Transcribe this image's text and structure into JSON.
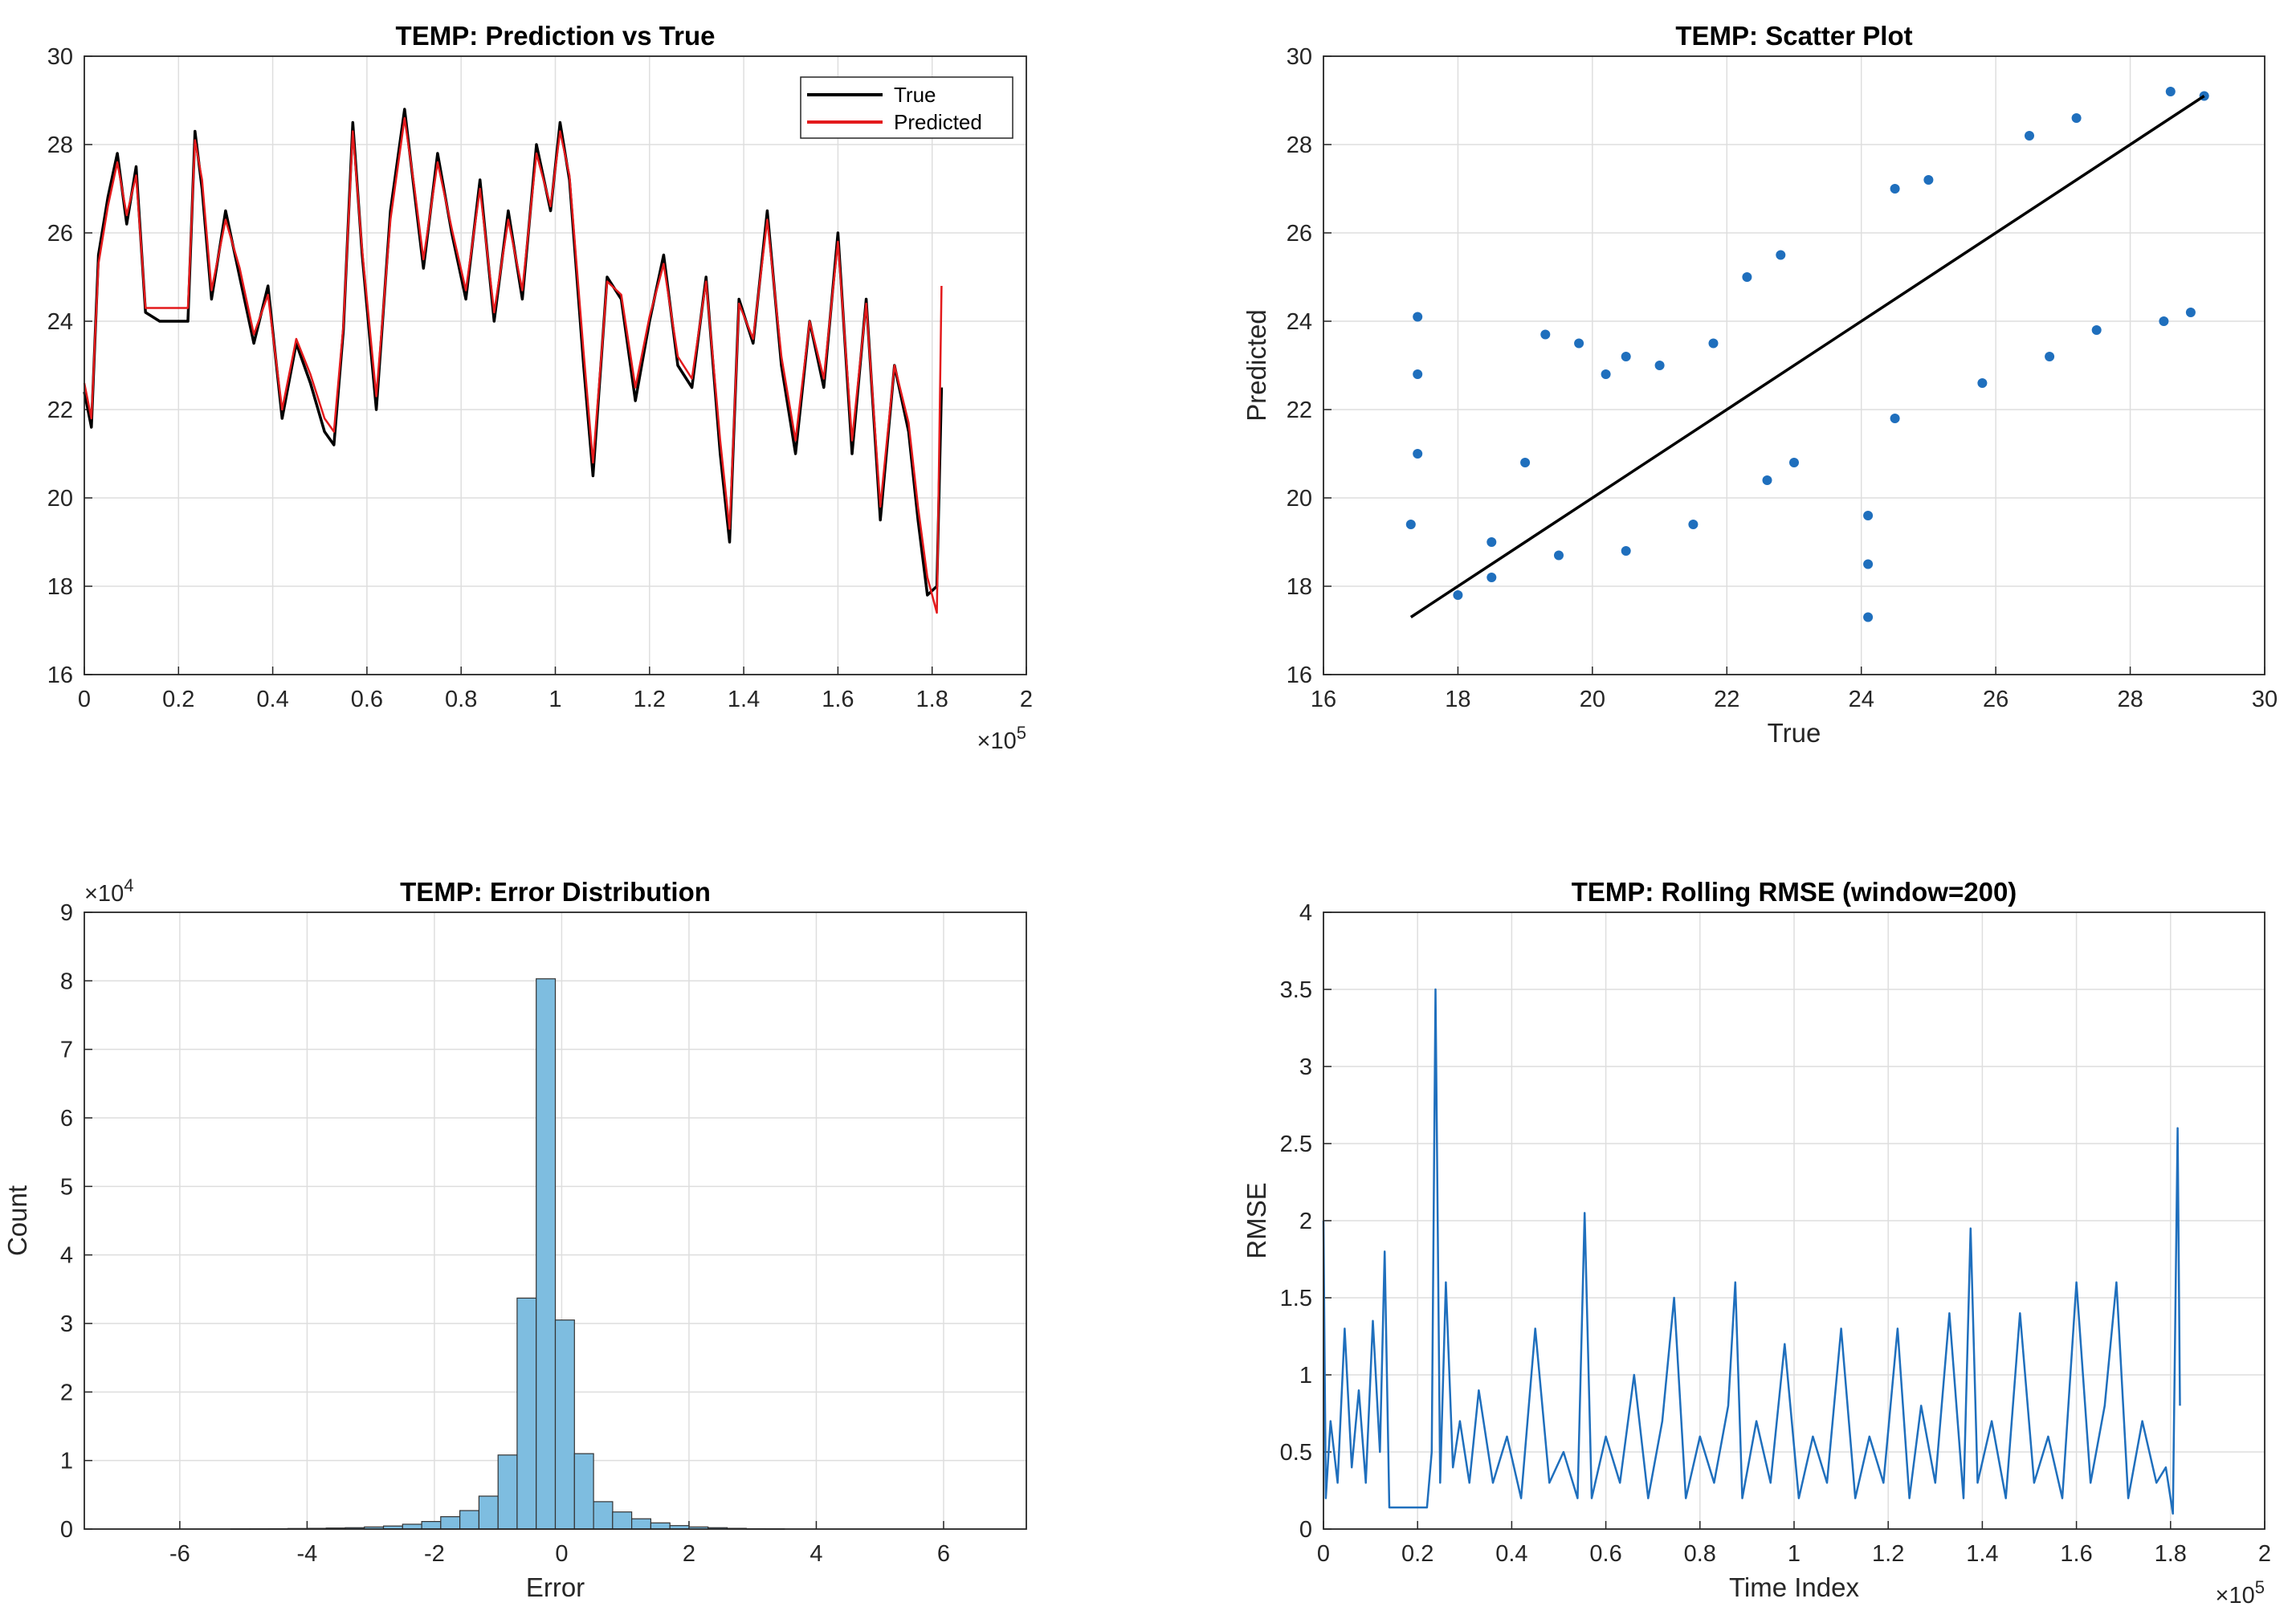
{
  "chart_data": [
    {
      "id": "pred",
      "type": "line",
      "title": "TEMP: Prediction vs True",
      "xlabel": "",
      "ylabel": "",
      "xlim": [
        0,
        200000
      ],
      "ylim": [
        16,
        30
      ],
      "xticks": [
        0,
        20000,
        40000,
        60000,
        80000,
        100000,
        120000,
        140000,
        160000,
        180000,
        200000
      ],
      "xtick_labels": [
        "0",
        "0.2",
        "0.4",
        "0.6",
        "0.8",
        "1",
        "1.2",
        "1.4",
        "1.6",
        "1.8",
        "2"
      ],
      "yticks": [
        16,
        18,
        20,
        22,
        24,
        26,
        28,
        30
      ],
      "ytick_labels": [
        "16",
        "18",
        "20",
        "22",
        "24",
        "26",
        "28",
        "30"
      ],
      "x_exponent_base": "×10",
      "x_exponent_power": "5",
      "grid": true,
      "legend_position": "top-right",
      "x": [
        0,
        1500,
        3000,
        5000,
        7000,
        9000,
        11000,
        13000,
        16000,
        20000,
        22000,
        23500,
        25000,
        27000,
        30000,
        33000,
        36000,
        39000,
        42000,
        45000,
        48000,
        51000,
        53000,
        55000,
        57000,
        59000,
        62000,
        65000,
        68000,
        70000,
        72000,
        75000,
        78000,
        81000,
        84000,
        87000,
        90000,
        93000,
        96000,
        99000,
        101000,
        103000,
        106000,
        108000,
        111000,
        114000,
        117000,
        120000,
        123000,
        126000,
        129000,
        132000,
        135000,
        137000,
        139000,
        142000,
        145000,
        148000,
        151000,
        154000,
        157000,
        160000,
        163000,
        166000,
        169000,
        172000,
        175000,
        177000,
        179000,
        181000,
        182000
      ],
      "series": [
        {
          "name": "True",
          "color": "#000000",
          "values": [
            22.4,
            21.6,
            25.5,
            26.8,
            27.8,
            26.2,
            27.5,
            24.2,
            24.0,
            24.0,
            24.0,
            28.3,
            27.0,
            24.5,
            26.5,
            25.0,
            23.5,
            24.8,
            21.8,
            23.5,
            22.6,
            21.5,
            21.2,
            23.8,
            28.5,
            25.5,
            22.0,
            26.5,
            28.8,
            27.0,
            25.2,
            27.8,
            26.0,
            24.5,
            27.2,
            24.0,
            26.5,
            24.5,
            28.0,
            26.5,
            28.5,
            27.2,
            23.0,
            20.5,
            25.0,
            24.5,
            22.2,
            24.0,
            25.5,
            23.0,
            22.5,
            25.0,
            21.0,
            19.0,
            24.5,
            23.5,
            26.5,
            23.0,
            21.0,
            24.0,
            22.5,
            26.0,
            21.0,
            24.5,
            19.5,
            23.0,
            21.5,
            19.5,
            17.8,
            18.0,
            22.5
          ]
        },
        {
          "name": "Predicted",
          "color": "#e31a1c",
          "values": [
            22.6,
            21.8,
            25.3,
            26.6,
            27.6,
            26.4,
            27.3,
            24.3,
            24.3,
            24.3,
            24.3,
            28.1,
            27.2,
            24.7,
            26.3,
            25.2,
            23.7,
            24.6,
            22.0,
            23.6,
            22.8,
            21.8,
            21.5,
            23.9,
            28.3,
            25.6,
            22.3,
            26.3,
            28.6,
            27.1,
            25.4,
            27.6,
            26.1,
            24.7,
            27.0,
            24.2,
            26.3,
            24.7,
            27.8,
            26.6,
            28.3,
            27.3,
            23.3,
            20.8,
            24.9,
            24.6,
            22.5,
            24.1,
            25.3,
            23.2,
            22.7,
            24.9,
            21.3,
            19.3,
            24.4,
            23.6,
            26.3,
            23.2,
            21.3,
            24.0,
            22.7,
            25.8,
            21.3,
            24.4,
            19.8,
            23.0,
            21.7,
            19.8,
            18.2,
            17.4,
            24.8
          ]
        }
      ]
    },
    {
      "id": "scatter",
      "type": "scatter",
      "title": "TEMP: Scatter Plot",
      "xlabel": "True",
      "ylabel": "Predicted",
      "xlim": [
        16,
        30
      ],
      "ylim": [
        16,
        30
      ],
      "xticks": [
        16,
        18,
        20,
        22,
        24,
        26,
        28,
        30
      ],
      "xtick_labels": [
        "16",
        "18",
        "20",
        "22",
        "24",
        "26",
        "28",
        "30"
      ],
      "yticks": [
        16,
        18,
        20,
        22,
        24,
        26,
        28,
        30
      ],
      "ytick_labels": [
        "16",
        "18",
        "20",
        "22",
        "24",
        "26",
        "28",
        "30"
      ],
      "grid": true,
      "color": "#1f6fbd",
      "reference_line": {
        "x": [
          17.3,
          29.1
        ],
        "y": [
          17.3,
          29.1
        ],
        "color": "#000000"
      },
      "points": [
        {
          "x": 17.4,
          "y": 24.1
        },
        {
          "x": 17.4,
          "y": 22.8
        },
        {
          "x": 17.4,
          "y": 21.0
        },
        {
          "x": 17.3,
          "y": 19.4
        },
        {
          "x": 18.5,
          "y": 19.0
        },
        {
          "x": 19.0,
          "y": 20.8
        },
        {
          "x": 19.3,
          "y": 23.7
        },
        {
          "x": 19.8,
          "y": 23.5
        },
        {
          "x": 20.2,
          "y": 22.8
        },
        {
          "x": 20.5,
          "y": 23.2
        },
        {
          "x": 21.0,
          "y": 23.0
        },
        {
          "x": 21.8,
          "y": 23.5
        },
        {
          "x": 22.3,
          "y": 25.0
        },
        {
          "x": 22.8,
          "y": 25.5
        },
        {
          "x": 24.1,
          "y": 17.3
        },
        {
          "x": 24.1,
          "y": 18.5
        },
        {
          "x": 24.1,
          "y": 19.6
        },
        {
          "x": 24.5,
          "y": 27.0
        },
        {
          "x": 25.0,
          "y": 27.2
        },
        {
          "x": 26.5,
          "y": 28.2
        },
        {
          "x": 27.2,
          "y": 28.6
        },
        {
          "x": 28.6,
          "y": 29.2
        },
        {
          "x": 29.1,
          "y": 29.1
        },
        {
          "x": 28.9,
          "y": 24.2
        },
        {
          "x": 28.5,
          "y": 24.0
        },
        {
          "x": 27.5,
          "y": 23.8
        },
        {
          "x": 26.8,
          "y": 23.2
        },
        {
          "x": 25.8,
          "y": 22.6
        },
        {
          "x": 24.5,
          "y": 21.8
        },
        {
          "x": 23.0,
          "y": 20.8
        },
        {
          "x": 22.6,
          "y": 20.4
        },
        {
          "x": 21.5,
          "y": 19.4
        },
        {
          "x": 20.5,
          "y": 18.8
        },
        {
          "x": 19.5,
          "y": 18.7
        },
        {
          "x": 18.5,
          "y": 18.2
        },
        {
          "x": 18.0,
          "y": 17.8
        }
      ]
    },
    {
      "id": "hist",
      "type": "bar",
      "title": "TEMP: Error Distribution",
      "xlabel": "Error",
      "ylabel": "Count",
      "xlim": [
        -7.5,
        7.3
      ],
      "ylim": [
        0,
        90000
      ],
      "xticks": [
        -6,
        -4,
        -2,
        0,
        2,
        4,
        6
      ],
      "xtick_labels": [
        "-6",
        "-4",
        "-2",
        "0",
        "2",
        "4",
        "6"
      ],
      "yticks": [
        0,
        10000,
        20000,
        30000,
        40000,
        50000,
        60000,
        70000,
        80000,
        90000
      ],
      "ytick_labels": [
        "0",
        "1",
        "2",
        "3",
        "4",
        "5",
        "6",
        "7",
        "8",
        "9"
      ],
      "y_exponent_base": "×10",
      "y_exponent_power": "4",
      "grid": true,
      "color": "#7ebde0",
      "edge_color": "#333333",
      "bin_edges": [
        -5.2,
        -4.9,
        -4.6,
        -4.3,
        -4.0,
        -3.7,
        -3.4,
        -3.1,
        -2.8,
        -2.5,
        -2.2,
        -1.9,
        -1.6,
        -1.3,
        -1.0,
        -0.7,
        -0.4,
        -0.1,
        0.2,
        0.5,
        0.8,
        1.1,
        1.4,
        1.7,
        2.0,
        2.3,
        2.6,
        2.9,
        3.2,
        3.5
      ],
      "values": [
        20,
        30,
        50,
        80,
        100,
        150,
        200,
        300,
        450,
        700,
        1100,
        1800,
        2700,
        4800,
        10800,
        33700,
        80300,
        30500,
        11000,
        4000,
        2500,
        1500,
        900,
        500,
        300,
        200,
        100,
        50,
        30
      ]
    },
    {
      "id": "rmse",
      "type": "line",
      "title": "TEMP: Rolling RMSE (window=200)",
      "xlabel": "Time Index",
      "ylabel": "RMSE",
      "xlim": [
        0,
        200000
      ],
      "ylim": [
        0,
        4
      ],
      "xticks": [
        0,
        20000,
        40000,
        60000,
        80000,
        100000,
        120000,
        140000,
        160000,
        180000,
        200000
      ],
      "xtick_labels": [
        "0",
        "0.2",
        "0.4",
        "0.6",
        "0.8",
        "1",
        "1.2",
        "1.4",
        "1.6",
        "1.8",
        "2"
      ],
      "yticks": [
        0,
        0.5,
        1,
        1.5,
        2,
        2.5,
        3,
        3.5,
        4
      ],
      "ytick_labels": [
        "0",
        "0.5",
        "1",
        "1.5",
        "2",
        "2.5",
        "3",
        "3.5",
        "4"
      ],
      "x_exponent_base": "×10",
      "x_exponent_power": "5",
      "grid": true,
      "color": "#1f6fbd",
      "x": [
        0,
        500,
        1500,
        3000,
        4500,
        6000,
        7500,
        9000,
        10500,
        12000,
        13000,
        14000,
        18000,
        22000,
        23000,
        23800,
        24800,
        26000,
        27500,
        29000,
        31000,
        33000,
        36000,
        39000,
        42000,
        45000,
        48000,
        51000,
        54000,
        55500,
        57000,
        60000,
        63000,
        66000,
        69000,
        72000,
        74500,
        77000,
        80000,
        83000,
        86000,
        87500,
        89000,
        92000,
        95000,
        98000,
        101000,
        104000,
        107000,
        110000,
        113000,
        116000,
        119000,
        122000,
        124500,
        127000,
        130000,
        133000,
        136000,
        137500,
        139000,
        142000,
        145000,
        148000,
        151000,
        154000,
        157000,
        160000,
        163000,
        166000,
        168500,
        171000,
        174000,
        177000,
        179000,
        180500,
        181500,
        182000
      ],
      "values": [
        2.0,
        0.2,
        0.7,
        0.3,
        1.3,
        0.4,
        0.9,
        0.3,
        1.35,
        0.5,
        1.8,
        0.14,
        0.14,
        0.14,
        0.5,
        3.5,
        0.3,
        1.6,
        0.4,
        0.7,
        0.3,
        0.9,
        0.3,
        0.6,
        0.2,
        1.3,
        0.3,
        0.5,
        0.2,
        2.05,
        0.2,
        0.6,
        0.3,
        1.0,
        0.2,
        0.7,
        1.5,
        0.2,
        0.6,
        0.3,
        0.8,
        1.6,
        0.2,
        0.7,
        0.3,
        1.2,
        0.2,
        0.6,
        0.3,
        1.3,
        0.2,
        0.6,
        0.3,
        1.3,
        0.2,
        0.8,
        0.3,
        1.4,
        0.2,
        1.95,
        0.3,
        0.7,
        0.2,
        1.4,
        0.3,
        0.6,
        0.2,
        1.6,
        0.3,
        0.8,
        1.6,
        0.2,
        0.7,
        0.3,
        0.4,
        0.1,
        2.6,
        0.8
      ]
    }
  ]
}
